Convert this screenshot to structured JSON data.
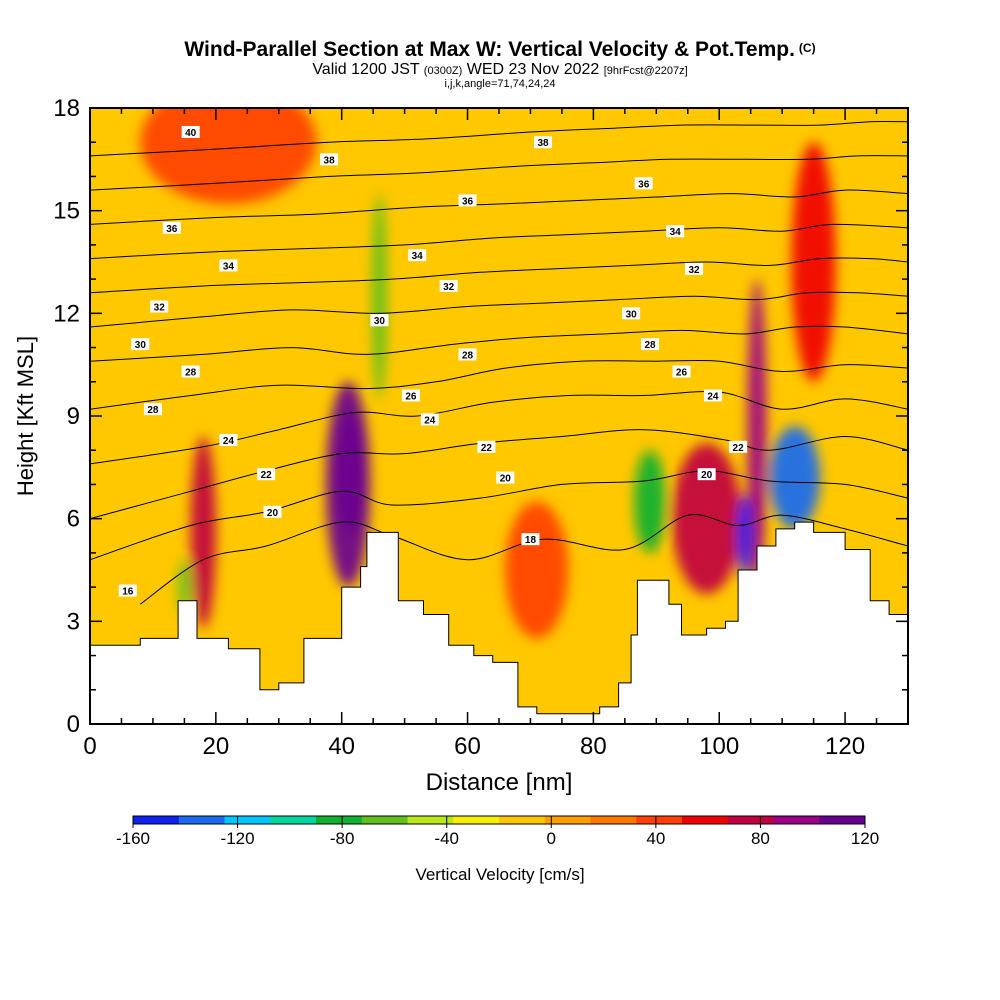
{
  "header": {
    "title": "Wind-Parallel Section at Max W: Vertical Velocity & Pot.Temp.",
    "copyright": "(C)",
    "valid_prefix": "Valid 1200 JST",
    "valid_utc": "(0300Z)",
    "valid_date": "WED 23 Nov 2022",
    "forecast_info": "[9hrFcst@2207z]",
    "indices": "i,j,k,angle=71,74,24,24"
  },
  "chart_data": {
    "type": "heatmap",
    "xlabel": "Distance [nm]",
    "ylabel": "Height [Kft MSL]",
    "xlim": [
      0,
      130
    ],
    "ylim": [
      0,
      18
    ],
    "x_ticks": [
      "0",
      "20",
      "40",
      "60",
      "80",
      "100",
      "120"
    ],
    "y_ticks": [
      "0",
      "3",
      "6",
      "9",
      "12",
      "15",
      "18"
    ],
    "colorbar": {
      "label": "Vertical Velocity [cm/s]",
      "range": [
        -160,
        120
      ],
      "ticks": [
        "-160",
        "-120",
        "-80",
        "-40",
        "0",
        "40",
        "80",
        "120"
      ],
      "colors": [
        "#1020f0",
        "#1a6af0",
        "#00c8ff",
        "#00d8a0",
        "#10b030",
        "#60c020",
        "#b8e818",
        "#f8f000",
        "#ffc800",
        "#ffa000",
        "#ff7800",
        "#ff4000",
        "#f00000",
        "#c00040",
        "#9c0088",
        "#6a0090"
      ]
    },
    "terrain": [
      [
        0,
        2.3
      ],
      [
        8,
        2.5
      ],
      [
        14,
        3.6
      ],
      [
        17,
        2.5
      ],
      [
        22,
        2.2
      ],
      [
        27,
        1.0
      ],
      [
        30,
        1.2
      ],
      [
        34,
        2.5
      ],
      [
        40,
        4.0
      ],
      [
        43,
        4.6
      ],
      [
        44,
        5.6
      ],
      [
        46,
        5.6
      ],
      [
        49,
        3.6
      ],
      [
        53,
        3.2
      ],
      [
        57,
        2.3
      ],
      [
        61,
        2.0
      ],
      [
        64,
        1.8
      ],
      [
        68,
        0.5
      ],
      [
        71,
        0.3
      ],
      [
        78,
        0.3
      ],
      [
        81,
        0.5
      ],
      [
        84,
        1.2
      ],
      [
        86,
        2.6
      ],
      [
        87,
        4.2
      ],
      [
        90,
        4.2
      ],
      [
        92,
        3.5
      ],
      [
        94,
        2.6
      ],
      [
        98,
        2.8
      ],
      [
        101,
        3.0
      ],
      [
        103,
        4.5
      ],
      [
        106,
        5.2
      ],
      [
        109,
        5.7
      ],
      [
        112,
        5.9
      ],
      [
        115,
        5.6
      ],
      [
        120,
        5.1
      ],
      [
        124,
        3.6
      ],
      [
        127,
        3.2
      ],
      [
        130,
        3.3
      ]
    ],
    "theta_contours": [
      {
        "label": "18",
        "points": [
          [
            8,
            3.5
          ],
          [
            18,
            4.8
          ],
          [
            28,
            5.2
          ],
          [
            40,
            5.9
          ],
          [
            48,
            5.5
          ],
          [
            60,
            4.8
          ],
          [
            72,
            5.4
          ],
          [
            85,
            5.1
          ],
          [
            95,
            6.1
          ],
          [
            103,
            5.8
          ],
          [
            110,
            6.1
          ],
          [
            120,
            5.7
          ],
          [
            130,
            5.2
          ]
        ],
        "label_at": [
          70,
          5.4
        ]
      },
      {
        "label": "20",
        "points": [
          [
            0,
            4.8
          ],
          [
            16,
            5.8
          ],
          [
            28,
            6.2
          ],
          [
            40,
            6.8
          ],
          [
            48,
            6.4
          ],
          [
            62,
            6.6
          ],
          [
            75,
            7.0
          ],
          [
            88,
            7.1
          ],
          [
            98,
            7.4
          ],
          [
            108,
            7.1
          ],
          [
            120,
            7.0
          ],
          [
            130,
            6.6
          ]
        ],
        "label_at": [
          29,
          6.2
        ]
      },
      {
        "label": "22",
        "points": [
          [
            0,
            6.0
          ],
          [
            16,
            6.8
          ],
          [
            28,
            7.4
          ],
          [
            40,
            7.9
          ],
          [
            50,
            7.9
          ],
          [
            62,
            8.2
          ],
          [
            75,
            8.4
          ],
          [
            88,
            8.6
          ],
          [
            101,
            8.3
          ],
          [
            108,
            8.0
          ],
          [
            120,
            8.4
          ],
          [
            130,
            8.0
          ]
        ],
        "label_at": [
          28,
          7.3
        ]
      },
      {
        "label": "24",
        "points": [
          [
            0,
            7.6
          ],
          [
            18,
            8.1
          ],
          [
            30,
            8.6
          ],
          [
            42,
            9.1
          ],
          [
            52,
            9.0
          ],
          [
            64,
            9.4
          ],
          [
            76,
            9.6
          ],
          [
            88,
            9.6
          ],
          [
            100,
            9.7
          ],
          [
            110,
            9.2
          ],
          [
            120,
            9.5
          ],
          [
            130,
            9.2
          ]
        ],
        "label_at": [
          22,
          8.3
        ]
      },
      {
        "label": "26",
        "points": [
          [
            0,
            9.2
          ],
          [
            16,
            9.6
          ],
          [
            30,
            9.9
          ],
          [
            44,
            9.8
          ],
          [
            55,
            10.0
          ],
          [
            66,
            10.4
          ],
          [
            78,
            10.6
          ],
          [
            90,
            10.6
          ],
          [
            100,
            10.6
          ],
          [
            110,
            10.3
          ],
          [
            120,
            10.5
          ],
          [
            130,
            10.4
          ]
        ],
        "label_at": [
          51,
          9.6
        ]
      },
      {
        "label": "28",
        "points": [
          [
            0,
            10.6
          ],
          [
            18,
            10.8
          ],
          [
            32,
            11.0
          ],
          [
            44,
            10.8
          ],
          [
            58,
            11.1
          ],
          [
            70,
            11.3
          ],
          [
            82,
            11.4
          ],
          [
            94,
            11.5
          ],
          [
            104,
            11.4
          ],
          [
            112,
            11.6
          ],
          [
            120,
            11.6
          ],
          [
            130,
            11.4
          ]
        ],
        "label_at": [
          60,
          10.8
        ]
      },
      {
        "label": "30",
        "points": [
          [
            0,
            11.6
          ],
          [
            18,
            11.9
          ],
          [
            32,
            12.1
          ],
          [
            46,
            12.0
          ],
          [
            60,
            12.2
          ],
          [
            72,
            12.3
          ],
          [
            84,
            12.4
          ],
          [
            96,
            12.5
          ],
          [
            106,
            12.4
          ],
          [
            114,
            12.6
          ],
          [
            122,
            12.6
          ],
          [
            130,
            12.5
          ]
        ],
        "label_at": [
          46,
          11.8
        ]
      },
      {
        "label": "32",
        "points": [
          [
            0,
            12.6
          ],
          [
            18,
            12.8
          ],
          [
            34,
            12.9
          ],
          [
            48,
            13.0
          ],
          [
            62,
            13.2
          ],
          [
            74,
            13.3
          ],
          [
            86,
            13.4
          ],
          [
            98,
            13.5
          ],
          [
            108,
            13.4
          ],
          [
            116,
            13.6
          ],
          [
            124,
            13.6
          ],
          [
            130,
            13.5
          ]
        ],
        "label_at": [
          57,
          12.8
        ]
      },
      {
        "label": "34",
        "points": [
          [
            0,
            13.6
          ],
          [
            20,
            13.8
          ],
          [
            36,
            13.9
          ],
          [
            50,
            14.0
          ],
          [
            64,
            14.2
          ],
          [
            76,
            14.3
          ],
          [
            88,
            14.4
          ],
          [
            100,
            14.5
          ],
          [
            110,
            14.4
          ],
          [
            118,
            14.6
          ],
          [
            130,
            14.5
          ]
        ],
        "label_at": [
          52,
          13.7
        ]
      },
      {
        "label": "36",
        "points": [
          [
            0,
            14.6
          ],
          [
            20,
            14.8
          ],
          [
            36,
            14.9
          ],
          [
            52,
            15.1
          ],
          [
            66,
            15.2
          ],
          [
            78,
            15.3
          ],
          [
            90,
            15.4
          ],
          [
            102,
            15.5
          ],
          [
            112,
            15.4
          ],
          [
            120,
            15.6
          ],
          [
            130,
            15.5
          ]
        ],
        "label_at": [
          60,
          15.3
        ]
      },
      {
        "label": "38",
        "points": [
          [
            0,
            15.6
          ],
          [
            20,
            15.8
          ],
          [
            38,
            16.0
          ],
          [
            52,
            16.1
          ],
          [
            68,
            16.3
          ],
          [
            80,
            16.4
          ],
          [
            92,
            16.5
          ],
          [
            104,
            16.5
          ],
          [
            114,
            16.5
          ],
          [
            122,
            16.6
          ],
          [
            130,
            16.6
          ]
        ],
        "label_at": [
          38,
          16.5
        ]
      },
      {
        "label": "40",
        "points": [
          [
            0,
            16.6
          ],
          [
            20,
            16.8
          ],
          [
            38,
            17.0
          ],
          [
            54,
            17.1
          ],
          [
            70,
            17.3
          ],
          [
            82,
            17.4
          ],
          [
            94,
            17.5
          ],
          [
            106,
            17.5
          ],
          [
            116,
            17.5
          ],
          [
            124,
            17.6
          ],
          [
            130,
            17.6
          ]
        ],
        "label_at": [
          16,
          17.3
        ]
      }
    ],
    "extra_contour_labels": [
      {
        "label": "16",
        "at": [
          6,
          3.9
        ]
      },
      {
        "label": "28",
        "at": [
          16,
          10.3
        ]
      },
      {
        "label": "28",
        "at": [
          10,
          9.2
        ]
      },
      {
        "label": "30",
        "at": [
          8,
          11.1
        ]
      },
      {
        "label": "32",
        "at": [
          11,
          12.2
        ]
      },
      {
        "label": "34",
        "at": [
          22,
          13.4
        ]
      },
      {
        "label": "36",
        "at": [
          13,
          14.5
        ]
      },
      {
        "label": "30",
        "at": [
          46,
          11.8
        ]
      },
      {
        "label": "24",
        "at": [
          54,
          8.9
        ]
      },
      {
        "label": "22",
        "at": [
          63,
          8.1
        ]
      },
      {
        "label": "20",
        "at": [
          66,
          7.2
        ]
      },
      {
        "label": "38",
        "at": [
          72,
          17.0
        ]
      },
      {
        "label": "36",
        "at": [
          88,
          15.8
        ]
      },
      {
        "label": "34",
        "at": [
          93,
          14.4
        ]
      },
      {
        "label": "32",
        "at": [
          96,
          13.3
        ]
      },
      {
        "label": "30",
        "at": [
          86,
          12.0
        ]
      },
      {
        "label": "28",
        "at": [
          89,
          11.1
        ]
      },
      {
        "label": "26",
        "at": [
          94,
          10.3
        ]
      },
      {
        "label": "24",
        "at": [
          99,
          9.6
        ]
      },
      {
        "label": "22",
        "at": [
          103,
          8.1
        ]
      },
      {
        "label": "20",
        "at": [
          98,
          7.3
        ]
      }
    ],
    "velocity_features": [
      {
        "x": 41,
        "y": 7.0,
        "rx": 3.5,
        "ry": 3.0,
        "value": 120
      },
      {
        "x": 41.5,
        "y": 7.3,
        "rx": 2.0,
        "ry": 1.8,
        "value": 110
      },
      {
        "x": 18,
        "y": 5.6,
        "rx": 2.0,
        "ry": 2.8,
        "value": 80
      },
      {
        "x": 98,
        "y": 6.0,
        "rx": 5.5,
        "ry": 2.2,
        "value": 80
      },
      {
        "x": 106,
        "y": 8.5,
        "rx": 1.5,
        "ry": 4.5,
        "value": 90
      },
      {
        "x": 115,
        "y": 13.5,
        "rx": 3.5,
        "ry": 3.5,
        "value": 60
      },
      {
        "x": 112,
        "y": 7.2,
        "rx": 4.0,
        "ry": 1.5,
        "value": -130
      },
      {
        "x": 104,
        "y": 5.5,
        "rx": 1.2,
        "ry": 1.2,
        "value": -160
      },
      {
        "x": 46,
        "y": 12.5,
        "rx": 1.2,
        "ry": 3.0,
        "value": -70
      },
      {
        "x": 89,
        "y": 6.5,
        "rx": 2.5,
        "ry": 1.5,
        "value": -80
      },
      {
        "x": 15,
        "y": 4.0,
        "rx": 1.0,
        "ry": 0.8,
        "value": -60
      },
      {
        "x": 22,
        "y": 17.0,
        "rx": 14.0,
        "ry": 1.8,
        "value": 40
      },
      {
        "x": 71,
        "y": 4.5,
        "rx": 5.0,
        "ry": 2.0,
        "value": 40
      }
    ]
  }
}
